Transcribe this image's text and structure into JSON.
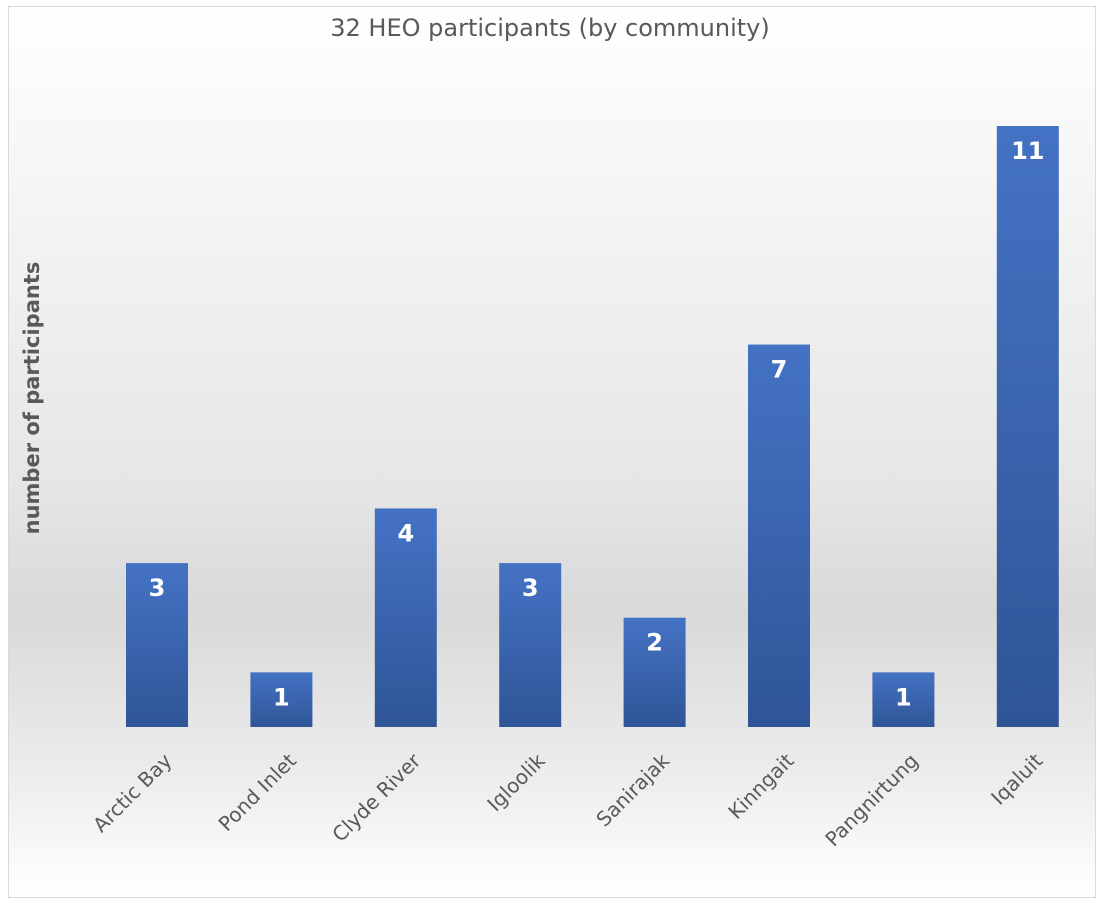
{
  "chart_data": {
    "type": "bar",
    "title": "32 HEO participants (by community)",
    "xlabel": "",
    "ylabel": "number of participants",
    "categories": [
      "Arctic Bay",
      "Pond Inlet",
      "Clyde River",
      "Igloolik",
      "Sanirajak",
      "Kinngait",
      "Pangnirtung",
      "Iqaluit"
    ],
    "values": [
      3,
      1,
      4,
      3,
      2,
      7,
      1,
      11
    ],
    "data_labels": [
      "3",
      "1",
      "4",
      "3",
      "2",
      "7",
      "1",
      "11"
    ],
    "ylim": [
      0,
      11
    ],
    "grid": false,
    "legend": "none",
    "colors": {
      "bar_top": "#4472c4",
      "bar_bottom": "#2f5597",
      "data_label": "#ffffff",
      "tick_label": "#595959"
    }
  }
}
